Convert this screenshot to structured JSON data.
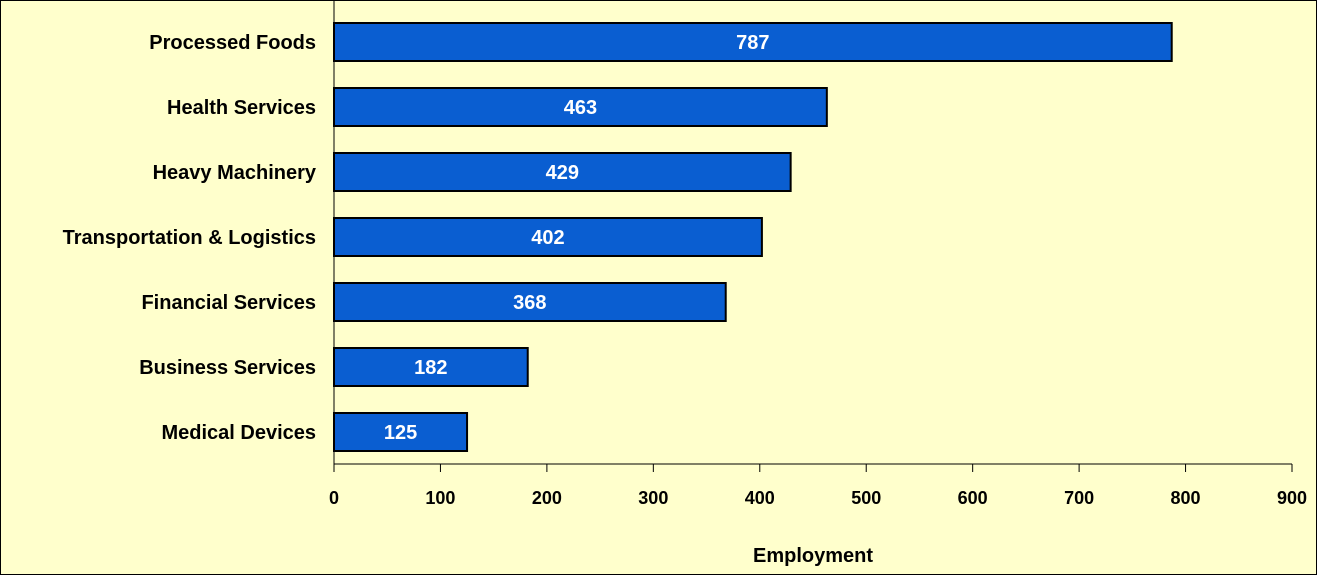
{
  "chart_data": {
    "type": "bar",
    "orientation": "horizontal",
    "categories": [
      "Processed Foods",
      "Health Services",
      "Heavy Machinery",
      "Transportation & Logistics",
      "Financial Services",
      "Business Services",
      "Medical Devices"
    ],
    "values": [
      787,
      463,
      429,
      402,
      368,
      182,
      125
    ],
    "data_labels": [
      "787",
      "463",
      "429",
      "402",
      "368",
      "182",
      "125"
    ],
    "title": "",
    "xlabel": "Employment",
    "ylabel": "",
    "xlim": [
      0,
      900
    ],
    "xticks": [
      0,
      100,
      200,
      300,
      400,
      500,
      600,
      700,
      800,
      900
    ],
    "xtick_labels": [
      "0",
      "100",
      "200",
      "300",
      "400",
      "500",
      "600",
      "700",
      "800",
      "900"
    ],
    "grid": false,
    "legend": "none",
    "colors": {
      "bar_fill": "#0a5ed1",
      "bar_stroke": "#000000",
      "background": "#ffffcc",
      "data_label": "#ffffff"
    }
  }
}
